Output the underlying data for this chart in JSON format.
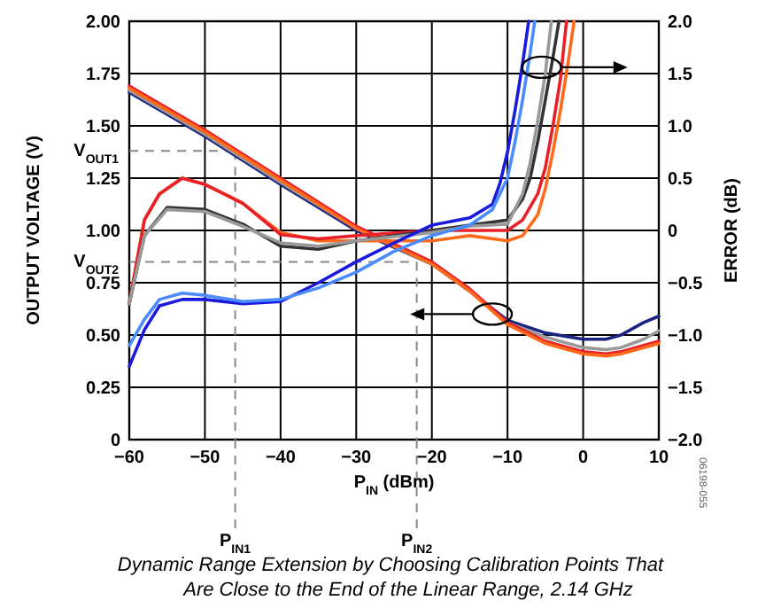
{
  "chart_data": {
    "type": "line",
    "title": "Dynamic Range Extension by Choosing Calibration Points That Are Close to the End of the Linear Range, 2.14 GHz",
    "xlabel": "P$_{IN}$ (dBm)",
    "ylabel": "OUTPUT VOLTAGE (V)",
    "y2label": "ERROR (dB)",
    "annotations": [
      "06198-055"
    ],
    "xlim": [
      -60,
      10
    ],
    "xticks": [
      {
        "value": -60,
        "label": "−60"
      },
      {
        "value": -50,
        "label": "−50"
      },
      {
        "value": -40,
        "label": "−40"
      },
      {
        "value": -30,
        "label": "−30"
      },
      {
        "value": -20,
        "label": "−20"
      },
      {
        "value": -10,
        "label": "−10"
      },
      0,
      10
    ],
    "ylim": [
      0,
      2
    ],
    "yticks": [
      0,
      {
        "value": 0.25,
        "label": "0.25"
      },
      {
        "value": 0.5,
        "label": "0.50"
      },
      {
        "value": 0.75,
        "label": "0.75"
      },
      {
        "value": 1,
        "label": "1.00"
      },
      {
        "value": 1.25,
        "label": "1.25"
      },
      {
        "value": 1.5,
        "label": "1.50"
      },
      {
        "value": 1.75,
        "label": "1.75"
      },
      {
        "value": 2,
        "label": "2.00"
      }
    ],
    "y2lim": [
      -2,
      2
    ],
    "y2ticks": [
      {
        "value": -2,
        "label": "−2.0"
      },
      {
        "value": -1.5,
        "label": "−1.5"
      },
      {
        "value": -1,
        "label": "−1.0"
      },
      {
        "value": -0.5,
        "label": "−0.5"
      },
      0,
      {
        "value": 0.5,
        "label": "0.5"
      },
      {
        "value": 1,
        "label": "1.0"
      },
      {
        "value": 1.5,
        "label": "1.5"
      },
      {
        "value": 2,
        "label": "2.0"
      }
    ],
    "grid": true,
    "marker": "none",
    "line_style": "solid",
    "ref_lines": [
      {
        "axis": "y",
        "value": 1.38,
        "label": "V$_{OUT1}$",
        "color": "#888888",
        "line_style": "dashed"
      },
      {
        "axis": "y",
        "value": 0.85,
        "label": "V$_{OUT2}$",
        "color": "#888888",
        "line_style": "dashed"
      },
      {
        "axis": "x",
        "value": -46,
        "label": "P$_{IN1}$",
        "color": "#888888",
        "line_style": "dashed"
      },
      {
        "axis": "x",
        "value": -22,
        "label": "P$_{IN2}$",
        "color": "#888888",
        "line_style": "dashed"
      }
    ],
    "series": [
      {
        "color": "#1a237e",
        "x": [
          -60,
          -50,
          -40,
          -30,
          -20,
          -15,
          -10,
          -5,
          0,
          3,
          5,
          8,
          10
        ],
        "values": [
          1.66,
          1.45,
          1.22,
          1.0,
          0.84,
          0.71,
          0.57,
          0.51,
          0.48,
          0.48,
          0.5,
          0.56,
          0.59
        ]
      },
      {
        "color": "#999999",
        "x": [
          -60,
          -50,
          -40,
          -30,
          -20,
          -15,
          -10,
          -5,
          0,
          3,
          5,
          8,
          10
        ],
        "values": [
          1.67,
          1.46,
          1.23,
          1.01,
          0.84,
          0.71,
          0.56,
          0.49,
          0.44,
          0.43,
          0.44,
          0.48,
          0.52
        ]
      },
      {
        "color": "#e8202a",
        "x": [
          -60,
          -50,
          -40,
          -30,
          -20,
          -15,
          -10,
          -5,
          0,
          3,
          5,
          8,
          10
        ],
        "values": [
          1.69,
          1.48,
          1.25,
          1.02,
          0.85,
          0.72,
          0.56,
          0.47,
          0.42,
          0.41,
          0.42,
          0.45,
          0.47
        ]
      },
      {
        "color": "#ff6a1a",
        "x": [
          -60,
          -50,
          -40,
          -30,
          -20,
          -15,
          -10,
          -5,
          0,
          3,
          5,
          8,
          10
        ],
        "values": [
          1.68,
          1.47,
          1.24,
          1.01,
          0.84,
          0.71,
          0.55,
          0.46,
          0.41,
          0.4,
          0.41,
          0.44,
          0.46
        ]
      },
      {
        "axis": "y2",
        "color": "#ff6a1a",
        "x": [
          -60,
          -58,
          -56,
          -53,
          -50,
          -45,
          -40,
          -35,
          -30,
          -20,
          -15,
          -10,
          -8,
          -6,
          -5,
          -4,
          -3,
          -2,
          -1.2
        ],
        "values": [
          -0.7,
          0.1,
          0.35,
          0.5,
          0.44,
          0.26,
          -0.02,
          -0.1,
          -0.1,
          -0.1,
          -0.05,
          -0.1,
          -0.05,
          0.15,
          0.4,
          0.75,
          1.15,
          1.6,
          2.0
        ]
      },
      {
        "axis": "y2",
        "color": "#e8202a",
        "x": [
          -60,
          -58,
          -56,
          -53,
          -50,
          -45,
          -40,
          -35,
          -30,
          -20,
          -15,
          -10,
          -8,
          -6,
          -5,
          -4,
          -3,
          -2.2
        ],
        "values": [
          -0.7,
          0.1,
          0.35,
          0.5,
          0.44,
          0.26,
          -0.04,
          -0.08,
          -0.05,
          0,
          0,
          0,
          0.1,
          0.35,
          0.6,
          1.0,
          1.45,
          2.0
        ]
      },
      {
        "axis": "y2",
        "color": "#333333",
        "x": [
          -60,
          -58,
          -55,
          -50,
          -45,
          -40,
          -35,
          -30,
          -20,
          -15,
          -10,
          -8,
          -7,
          -6,
          -5,
          -4,
          -3.2
        ],
        "values": [
          -0.7,
          -0.05,
          0.22,
          0.2,
          0.06,
          -0.15,
          -0.18,
          -0.1,
          0,
          0.05,
          0.1,
          0.3,
          0.5,
          0.85,
          1.25,
          1.65,
          2.0
        ]
      },
      {
        "axis": "y2",
        "color": "#999999",
        "x": [
          -60,
          -58,
          -55,
          -50,
          -45,
          -40,
          -35,
          -30,
          -20,
          -15,
          -10,
          -8,
          -7,
          -6,
          -5,
          -4.2
        ],
        "values": [
          -0.7,
          -0.05,
          0.2,
          0.18,
          0.04,
          -0.12,
          -0.15,
          -0.1,
          -0.02,
          0.04,
          0.06,
          0.35,
          0.65,
          1.05,
          1.5,
          2.0
        ]
      },
      {
        "axis": "y2",
        "color": "#1a1adc",
        "x": [
          -60,
          -58,
          -56,
          -53,
          -50,
          -45,
          -40,
          -35,
          -30,
          -25,
          -20,
          -15,
          -12,
          -11,
          -10,
          -9,
          -8,
          -7.2
        ],
        "values": [
          -1.3,
          -0.95,
          -0.72,
          -0.66,
          -0.66,
          -0.7,
          -0.68,
          -0.5,
          -0.3,
          -0.12,
          0.05,
          0.12,
          0.25,
          0.45,
          0.75,
          1.15,
          1.6,
          2.0
        ]
      },
      {
        "axis": "y2",
        "color": "#4a8cff",
        "x": [
          -60,
          -58,
          -56,
          -53,
          -50,
          -45,
          -40,
          -35,
          -30,
          -25,
          -20,
          -15,
          -12,
          -10,
          -9,
          -8,
          -7,
          -6.4
        ],
        "values": [
          -1.1,
          -0.85,
          -0.66,
          -0.6,
          -0.62,
          -0.68,
          -0.66,
          -0.55,
          -0.4,
          -0.2,
          -0.05,
          0.05,
          0.2,
          0.5,
          0.85,
          1.25,
          1.7,
          2.0
        ]
      }
    ]
  }
}
